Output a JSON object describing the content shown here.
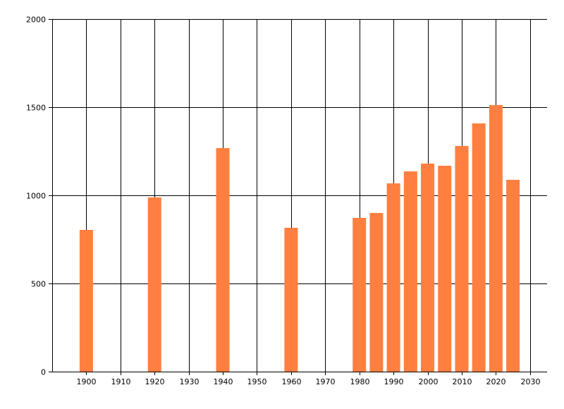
{
  "chart_data": {
    "type": "bar",
    "title": "",
    "xlabel": "",
    "ylabel": "",
    "x": [
      1900,
      1920,
      1940,
      1960,
      1980,
      1985,
      1990,
      1995,
      2000,
      2005,
      2010,
      2015,
      2020,
      2025
    ],
    "values": [
      804,
      988,
      1268,
      816,
      872,
      900,
      1068,
      1136,
      1180,
      1168,
      1280,
      1408,
      1512,
      1088
    ],
    "xlim": [
      1890,
      2035
    ],
    "ylim": [
      0,
      2000
    ],
    "xticks": [
      1900,
      1910,
      1920,
      1930,
      1940,
      1950,
      1960,
      1970,
      1980,
      1990,
      2000,
      2010,
      2020,
      2030
    ],
    "yticks": [
      0,
      500,
      1000,
      1500,
      2000
    ],
    "grid": true,
    "bar_color": "#FF7F40",
    "grid_color": "#000000"
  }
}
